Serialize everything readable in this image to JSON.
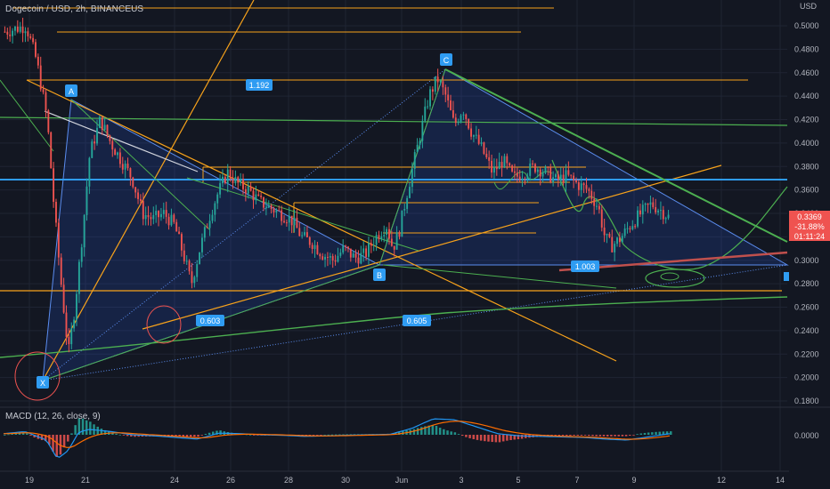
{
  "header": {
    "title": "Dogecoin / USD, 2h, BINANCEUS",
    "currency": "USD"
  },
  "macd": {
    "title": "MACD (12, 26, close, 9)",
    "zero_label": "0.0000"
  },
  "price_box": {
    "price": "0.3369",
    "change": "-31.88%",
    "countdown": "01:11:24"
  },
  "chart_data": {
    "type": "candlestick",
    "symbol": "Dogecoin / USD",
    "interval": "2h",
    "exchange": "BINANCEUS",
    "y_axis_ticks": [
      "0.5000",
      "0.4800",
      "0.4600",
      "0.4400",
      "0.4200",
      "0.4000",
      "0.3800",
      "0.3600",
      "0.3400",
      "0.3200",
      "0.3000",
      "0.2800",
      "0.2600",
      "0.2400",
      "0.2200",
      "0.2000",
      "0.1800"
    ],
    "x_axis_ticks": [
      "19",
      "21",
      "24",
      "26",
      "28",
      "30",
      "Jun",
      "3",
      "5",
      "7",
      "9",
      "12",
      "14"
    ],
    "ylim": [
      0.175,
      0.515
    ],
    "last_price": 0.3369,
    "price_path": [
      [
        0,
        0.495
      ],
      [
        1,
        0.5
      ],
      [
        1.5,
        0.47
      ],
      [
        2,
        0.42
      ],
      [
        2.3,
        0.35
      ],
      [
        2.6,
        0.29
      ],
      [
        3,
        0.22
      ],
      [
        3.3,
        0.26
      ],
      [
        3.7,
        0.33
      ],
      [
        4,
        0.39
      ],
      [
        4.5,
        0.42
      ],
      [
        5,
        0.4
      ],
      [
        5.5,
        0.385
      ],
      [
        6,
        0.37
      ],
      [
        6.5,
        0.34
      ],
      [
        7,
        0.335
      ],
      [
        7.5,
        0.34
      ],
      [
        8,
        0.33
      ],
      [
        8.5,
        0.3
      ],
      [
        8.8,
        0.28
      ],
      [
        9.2,
        0.31
      ],
      [
        9.7,
        0.34
      ],
      [
        10,
        0.355
      ],
      [
        10.5,
        0.375
      ],
      [
        11,
        0.365
      ],
      [
        11.5,
        0.36
      ],
      [
        12,
        0.35
      ],
      [
        12.5,
        0.345
      ],
      [
        13,
        0.34
      ],
      [
        13.5,
        0.335
      ],
      [
        14,
        0.32
      ],
      [
        14.5,
        0.315
      ],
      [
        15,
        0.305
      ],
      [
        15.5,
        0.3
      ],
      [
        16,
        0.31
      ],
      [
        16.5,
        0.302
      ],
      [
        17,
        0.305
      ],
      [
        17.5,
        0.32
      ],
      [
        18,
        0.33
      ],
      [
        18.3,
        0.31
      ],
      [
        18.6,
        0.325
      ],
      [
        19,
        0.36
      ],
      [
        19.5,
        0.4
      ],
      [
        20,
        0.44
      ],
      [
        20.4,
        0.455
      ],
      [
        20.8,
        0.44
      ],
      [
        21.2,
        0.415
      ],
      [
        21.6,
        0.43
      ],
      [
        22,
        0.41
      ],
      [
        22.5,
        0.395
      ],
      [
        23,
        0.375
      ],
      [
        23.5,
        0.385
      ],
      [
        24,
        0.37
      ],
      [
        24.5,
        0.375
      ],
      [
        25,
        0.38
      ],
      [
        25.5,
        0.375
      ],
      [
        26,
        0.368
      ],
      [
        26.5,
        0.372
      ],
      [
        27,
        0.365
      ],
      [
        27.5,
        0.36
      ],
      [
        28,
        0.345
      ],
      [
        28.3,
        0.32
      ],
      [
        28.6,
        0.312
      ],
      [
        29,
        0.318
      ],
      [
        29.5,
        0.33
      ],
      [
        30,
        0.34
      ],
      [
        30.5,
        0.348
      ],
      [
        31,
        0.342
      ],
      [
        31.3,
        0.337
      ]
    ],
    "macd_path": [
      [
        0,
        0.0002
      ],
      [
        1,
        0.0006
      ],
      [
        2,
        -0.001
      ],
      [
        2.5,
        -0.0045
      ],
      [
        3,
        -0.003
      ],
      [
        3.5,
        0.0005
      ],
      [
        4,
        0.001
      ],
      [
        5,
        0.0006
      ],
      [
        6,
        0.0
      ],
      [
        7,
        -0.0002
      ],
      [
        8,
        -0.0005
      ],
      [
        9,
        -0.0008
      ],
      [
        9.5,
        -0.0003
      ],
      [
        10,
        0.0003
      ],
      [
        11,
        0.0002
      ],
      [
        12,
        0.0
      ],
      [
        13,
        -0.0001
      ],
      [
        14,
        -0.0003
      ],
      [
        15,
        -0.0002
      ],
      [
        16,
        -0.0001
      ],
      [
        17,
        0.0
      ],
      [
        18,
        0.0001
      ],
      [
        19,
        0.0012
      ],
      [
        20,
        0.003
      ],
      [
        21,
        0.0028
      ],
      [
        22,
        0.0015
      ],
      [
        23,
        0.0002
      ],
      [
        24,
        -0.0002
      ],
      [
        25,
        -0.0003
      ],
      [
        26,
        -0.0004
      ],
      [
        27,
        -0.0005
      ],
      [
        28,
        -0.0008
      ],
      [
        29,
        -0.001
      ],
      [
        30,
        -0.0004
      ],
      [
        31,
        0.0002
      ]
    ],
    "pattern_points": {
      "X": 0.205,
      "A": 0.435,
      "B": 0.297,
      "C": 0.462
    },
    "annotations": [
      {
        "text": "X",
        "kind": "pattern-point"
      },
      {
        "text": "A",
        "kind": "pattern-point"
      },
      {
        "text": "B",
        "kind": "pattern-point"
      },
      {
        "text": "C",
        "kind": "pattern-point"
      },
      {
        "text": "1.192",
        "kind": "ratio"
      },
      {
        "text": "0.603",
        "kind": "ratio"
      },
      {
        "text": "0.605",
        "kind": "ratio"
      },
      {
        "text": "1.003",
        "kind": "ratio"
      }
    ],
    "horizontal_levels": [
      {
        "price": 0.4535,
        "color": "#f7a21b"
      },
      {
        "price": 0.37,
        "color": "#2f9cf2"
      },
      {
        "price": 0.381,
        "color": "#f7a21b"
      },
      {
        "price": 0.2745,
        "color": "#f7a21b"
      }
    ],
    "colors": {
      "bull": "#26a69a",
      "bear": "#ef5350",
      "orange": "#f7a21b",
      "green": "#4caf50",
      "blue": "#2f9cf2",
      "pattern_fill": "#2962ff",
      "background": "#131722",
      "macd_line": "#2196f3",
      "signal_line": "#ff6d00"
    }
  }
}
